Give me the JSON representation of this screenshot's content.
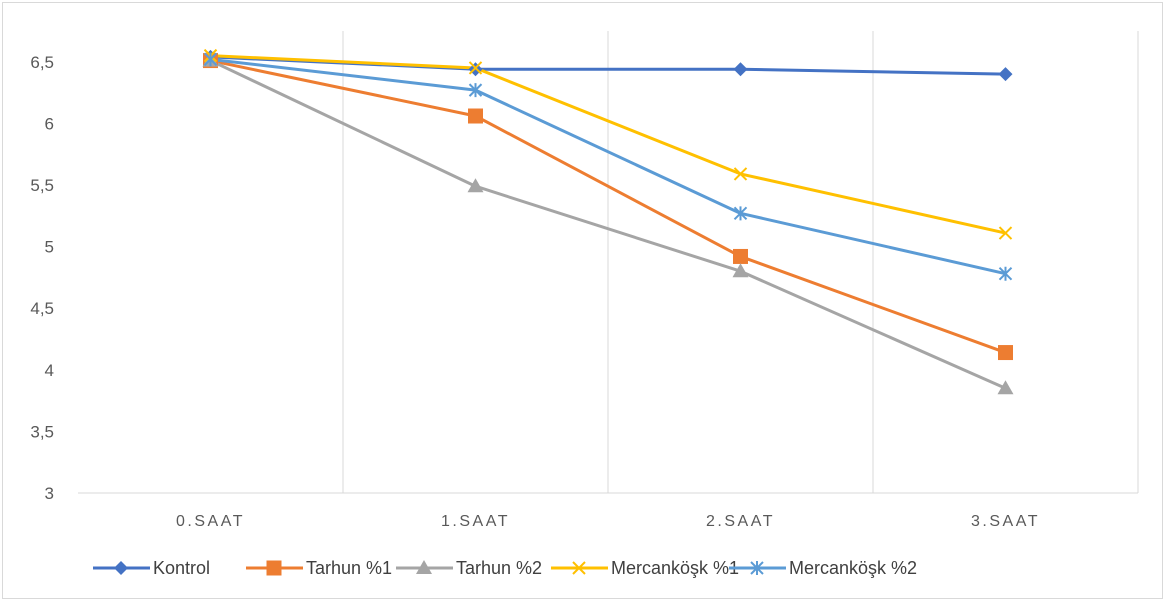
{
  "chart_data": {
    "type": "line",
    "title": "",
    "xlabel": "",
    "ylabel": "",
    "categories": [
      "0.SAAT",
      "1.SAAT",
      "2.SAAT",
      "3.SAAT"
    ],
    "ylim": [
      3,
      6.75
    ],
    "yticks": [
      3,
      3.5,
      4,
      4.5,
      5,
      5.5,
      6,
      6.5
    ],
    "ytick_labels": [
      "3",
      "3,5",
      "4",
      "4,5",
      "5",
      "5,5",
      "6",
      "6,5"
    ],
    "grid": "vertical",
    "legend_position": "bottom",
    "series": [
      {
        "name": "Kontrol",
        "values": [
          6.54,
          6.44,
          6.44,
          6.4
        ],
        "color": "#4472C4",
        "marker": "diamond"
      },
      {
        "name": "Tarhun %1",
        "values": [
          6.51,
          6.06,
          4.92,
          4.14
        ],
        "color": "#ED7D31",
        "marker": "square"
      },
      {
        "name": "Tarhun %2",
        "values": [
          6.51,
          5.49,
          4.8,
          3.85
        ],
        "color": "#A5A5A5",
        "marker": "triangle"
      },
      {
        "name": "Mercanköşk %1",
        "values": [
          6.55,
          6.45,
          5.59,
          5.11
        ],
        "color": "#FFC000",
        "marker": "x"
      },
      {
        "name": "Mercanköşk %2",
        "values": [
          6.52,
          6.27,
          5.27,
          4.78
        ],
        "color": "#5B9BD5",
        "marker": "asterisk"
      }
    ]
  }
}
